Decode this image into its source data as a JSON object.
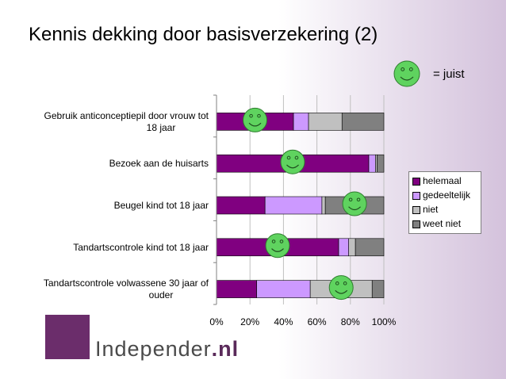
{
  "slide": {
    "title": "Kennis dekking door basisverzekering (2)",
    "juist_label": "= juist"
  },
  "colors": {
    "helemaal": "#800080",
    "gedeeltelijk": "#cc99ff",
    "niet": "#c0c0c0",
    "weet_niet": "#808080",
    "smiley": "#5fd35f",
    "logo": "#6b2d6b"
  },
  "logo": {
    "text": "Independer",
    "suffix": ".nl"
  },
  "chart_data": {
    "type": "bar",
    "orientation": "horizontal",
    "stacked": true,
    "percent": true,
    "categories": [
      "Gebruik anticonceptiepil door vrouw tot 18 jaar",
      "Bezoek aan de huisarts",
      "Beugel kind tot 18 jaar",
      "Tandartscontrole kind tot 18 jaar",
      "Tandartscontrole volwassene 30 jaar of ouder"
    ],
    "series": [
      {
        "name": "helemaal",
        "values": [
          46,
          91,
          29,
          73,
          24
        ]
      },
      {
        "name": "gedeeltelijk",
        "values": [
          9,
          4,
          34,
          6,
          32
        ]
      },
      {
        "name": "niet",
        "values": [
          20,
          1,
          2,
          4,
          37
        ]
      },
      {
        "name": "weet niet",
        "values": [
          25,
          4,
          35,
          17,
          7
        ]
      }
    ],
    "correct_answer": [
      "helemaal",
      "helemaal",
      "weet niet",
      "helemaal",
      "niet"
    ],
    "x_ticks": [
      "0%",
      "20%",
      "40%",
      "60%",
      "80%",
      "100%"
    ],
    "xlim": [
      0,
      100
    ],
    "grid": true,
    "legend_position": "right"
  }
}
